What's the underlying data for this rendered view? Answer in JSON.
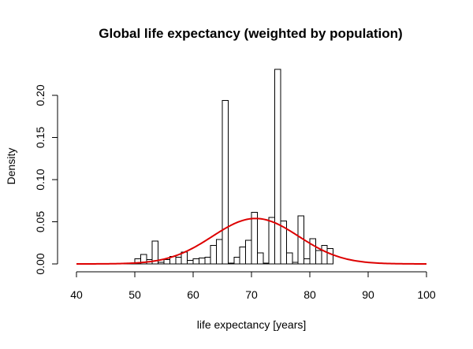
{
  "chart_data": {
    "type": "bar",
    "title": "Global life expectancy (weighted by population)",
    "xlabel": "life expectancy [years]",
    "ylabel": "Density",
    "xlim": [
      40,
      100
    ],
    "ylim": [
      0,
      0.23
    ],
    "x_ticks": [
      40,
      50,
      60,
      70,
      80,
      90,
      100
    ],
    "y_ticks": [
      0.0,
      0.05,
      0.1,
      0.15,
      0.2
    ],
    "x_tick_labels": [
      "40",
      "50",
      "60",
      "70",
      "80",
      "90",
      "100"
    ],
    "y_tick_labels": [
      "0.00",
      "0.05",
      "0.10",
      "0.15",
      "0.20"
    ],
    "grid": false,
    "histogram": {
      "bin_width": 1,
      "bins": [
        {
          "start": 48,
          "density": 0.001
        },
        {
          "start": 49,
          "density": 0.001
        },
        {
          "start": 50,
          "density": 0.006
        },
        {
          "start": 51,
          "density": 0.011
        },
        {
          "start": 52,
          "density": 0.005
        },
        {
          "start": 53,
          "density": 0.027
        },
        {
          "start": 54,
          "density": 0.002
        },
        {
          "start": 55,
          "density": 0.005
        },
        {
          "start": 56,
          "density": 0.009
        },
        {
          "start": 57,
          "density": 0.008
        },
        {
          "start": 58,
          "density": 0.014
        },
        {
          "start": 59,
          "density": 0.004
        },
        {
          "start": 60,
          "density": 0.006
        },
        {
          "start": 61,
          "density": 0.007
        },
        {
          "start": 62,
          "density": 0.008
        },
        {
          "start": 63,
          "density": 0.022
        },
        {
          "start": 64,
          "density": 0.029
        },
        {
          "start": 65,
          "density": 0.194
        },
        {
          "start": 66,
          "density": 0.001
        },
        {
          "start": 67,
          "density": 0.008
        },
        {
          "start": 68,
          "density": 0.02
        },
        {
          "start": 69,
          "density": 0.028
        },
        {
          "start": 70,
          "density": 0.061
        },
        {
          "start": 71,
          "density": 0.013
        },
        {
          "start": 72,
          "density": 0.001
        },
        {
          "start": 73,
          "density": 0.055
        },
        {
          "start": 74,
          "density": 0.231
        },
        {
          "start": 75,
          "density": 0.051
        },
        {
          "start": 76,
          "density": 0.013
        },
        {
          "start": 77,
          "density": 0.002
        },
        {
          "start": 78,
          "density": 0.057
        },
        {
          "start": 79,
          "density": 0.006
        },
        {
          "start": 80,
          "density": 0.03
        },
        {
          "start": 81,
          "density": 0.016
        },
        {
          "start": 82,
          "density": 0.022
        },
        {
          "start": 83,
          "density": 0.018
        }
      ]
    },
    "curve": {
      "type": "normal-density",
      "mean": 70.7,
      "sd": 7.4,
      "x_range": [
        40,
        100
      ],
      "color": "#dd0000"
    }
  }
}
